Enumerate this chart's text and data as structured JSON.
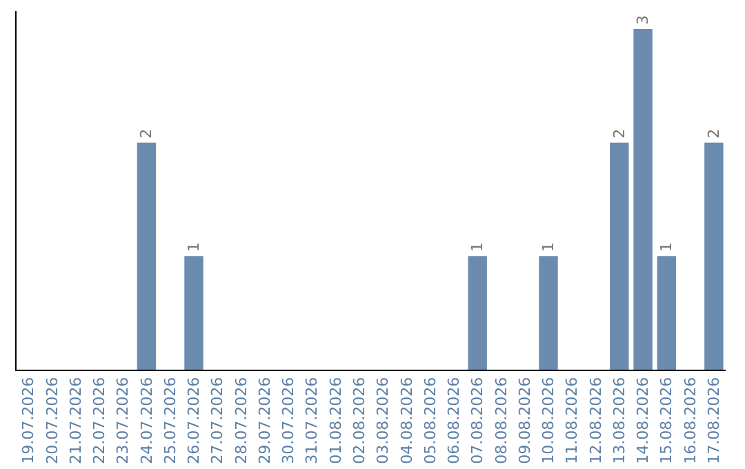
{
  "chart_data": {
    "type": "bar",
    "categories": [
      "19.07.2026",
      "20.07.2026",
      "21.07.2026",
      "22.07.2026",
      "23.07.2026",
      "24.07.2026",
      "25.07.2026",
      "26.07.2026",
      "27.07.2026",
      "28.07.2026",
      "29.07.2026",
      "30.07.2026",
      "31.07.2026",
      "01.08.2026",
      "02.08.2026",
      "03.08.2026",
      "04.08.2026",
      "05.08.2026",
      "06.08.2026",
      "07.08.2026",
      "08.08.2026",
      "09.08.2026",
      "10.08.2026",
      "11.08.2026",
      "12.08.2026",
      "13.08.2026",
      "14.08.2026",
      "15.08.2026",
      "16.08.2026",
      "17.08.2026"
    ],
    "values": [
      0,
      0,
      0,
      0,
      0,
      2,
      0,
      1,
      0,
      0,
      0,
      0,
      0,
      0,
      0,
      0,
      0,
      0,
      0,
      1,
      0,
      0,
      1,
      0,
      0,
      2,
      3,
      1,
      0,
      2
    ],
    "value_labels": [
      null,
      null,
      null,
      null,
      null,
      "2",
      null,
      "1",
      null,
      null,
      null,
      null,
      null,
      null,
      null,
      null,
      null,
      null,
      null,
      "1",
      null,
      null,
      "1",
      null,
      null,
      "2",
      "3",
      "1",
      null,
      "2"
    ],
    "color": "#6b8cae",
    "tick_labels": "x",
    "grid": false
  }
}
